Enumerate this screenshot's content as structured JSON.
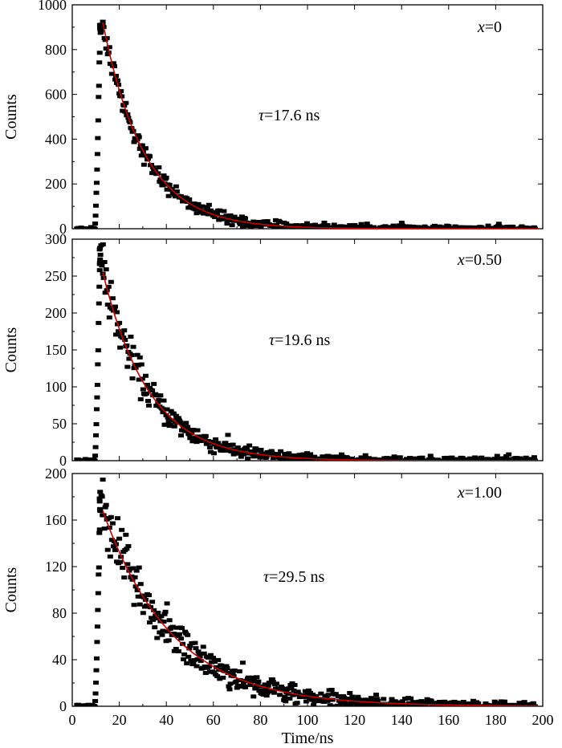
{
  "chart_data": [
    {
      "type": "scatter",
      "ylabel": "Counts",
      "xlim": [
        0,
        200
      ],
      "ylim": [
        0,
        1000
      ],
      "yticks": [
        "0",
        "200",
        "400",
        "600",
        "800",
        "1000"
      ],
      "annotation_x": {
        "var": "x",
        "value": "=0"
      },
      "annotation_tau": {
        "sym": "τ",
        "value": "=17.6 ns"
      },
      "tau_ns": 17.6,
      "peak_time_ns": 12,
      "peak_counts": 945,
      "fit_start_counts": 920,
      "series": [
        {
          "kind": "data-points",
          "color": "#000000"
        },
        {
          "kind": "exponential-fit",
          "color": "#cc0000"
        }
      ]
    },
    {
      "type": "scatter",
      "ylabel": "Counts",
      "xlim": [
        0,
        200
      ],
      "ylim": [
        0,
        300
      ],
      "yticks": [
        "0",
        "50",
        "100",
        "150",
        "200",
        "250",
        "300"
      ],
      "annotation_x": {
        "var": "x",
        "value": "=0.50"
      },
      "annotation_tau": {
        "sym": "τ",
        "value": "=19.6 ns"
      },
      "tau_ns": 19.6,
      "peak_time_ns": 12,
      "peak_counts": 300,
      "fit_start_counts": 255,
      "series": [
        {
          "kind": "data-points",
          "color": "#000000"
        },
        {
          "kind": "exponential-fit",
          "color": "#cc0000"
        }
      ]
    },
    {
      "type": "scatter",
      "ylabel": "Counts",
      "xlabel": "Time/ns",
      "xlim": [
        0,
        200
      ],
      "ylim": [
        0,
        200
      ],
      "yticks": [
        "0",
        "40",
        "80",
        "120",
        "160",
        "200"
      ],
      "xticks": [
        "0",
        "20",
        "40",
        "60",
        "80",
        "100",
        "120",
        "140",
        "160",
        "180",
        "200"
      ],
      "annotation_x": {
        "var": "x",
        "value": "=1.00"
      },
      "annotation_tau": {
        "sym": "τ",
        "value": "=29.5 ns"
      },
      "tau_ns": 29.5,
      "peak_time_ns": 12,
      "peak_counts": 185,
      "fit_start_counts": 168,
      "series": [
        {
          "kind": "data-points",
          "color": "#000000"
        },
        {
          "kind": "exponential-fit",
          "color": "#cc0000"
        }
      ]
    }
  ]
}
